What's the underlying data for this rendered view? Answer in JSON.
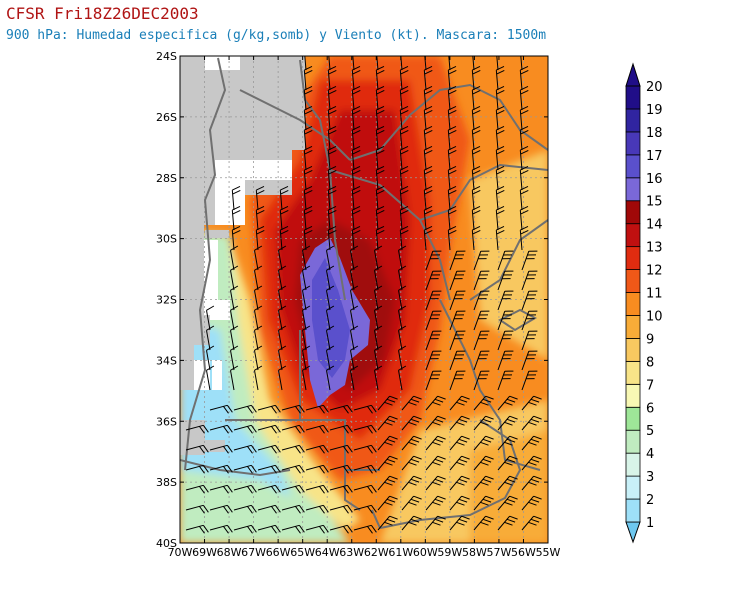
{
  "header": {
    "title": "CFSR Fri18Z26DEC2003",
    "subtitle": "900 hPa: Humedad especifica (g/kg,somb) y Viento (kt). Mascara: 1500m"
  },
  "map": {
    "lon_range": [
      -70,
      -55
    ],
    "lat_range": [
      -40,
      -24
    ],
    "lon_labels": [
      "70W",
      "69W",
      "68W",
      "67W",
      "66W",
      "65W",
      "64W",
      "63W",
      "62W",
      "61W",
      "60W",
      "59W",
      "58W",
      "57W",
      "56W",
      "55W"
    ],
    "lat_labels": [
      "24S",
      "26S",
      "28S",
      "30S",
      "32S",
      "34S",
      "36S",
      "38S",
      "40S"
    ],
    "grid": true,
    "masked_color": "#c8c8c8"
  },
  "colorbar": {
    "labels": [
      "1",
      "2",
      "3",
      "4",
      "5",
      "6",
      "7",
      "8",
      "9",
      "10",
      "11",
      "12",
      "13",
      "14",
      "15",
      "16",
      "17",
      "18",
      "19",
      "20"
    ],
    "colors": [
      "#6ec8f0",
      "#9ee0f8",
      "#c8f0f8",
      "#d8f4e8",
      "#c0ecc0",
      "#9ee698",
      "#f8f8b4",
      "#f8e488",
      "#f8c860",
      "#f8ac38",
      "#f88c20",
      "#f05818",
      "#e02c10",
      "#c01010",
      "#a00808",
      "#7a68d8",
      "#5a50cc",
      "#4838b8",
      "#3024a0",
      "#200e88"
    ],
    "placement": "right"
  },
  "icons": {
    "wind_barb": "wind-barb-icon",
    "arrow_up": "triangle-up-icon",
    "arrow_down": "triangle-down-icon"
  }
}
